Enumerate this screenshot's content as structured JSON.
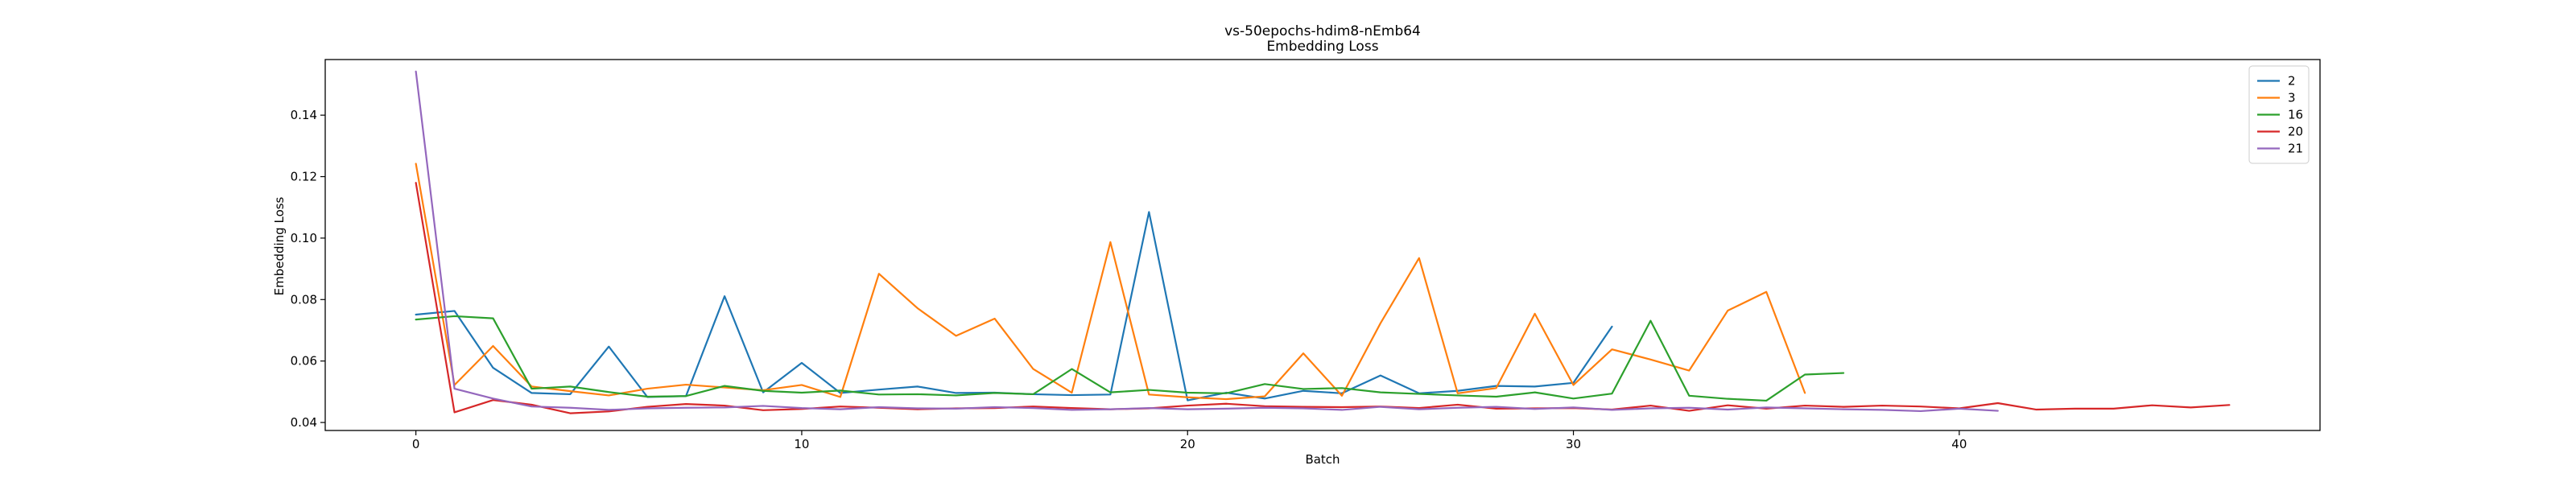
{
  "chart_data": {
    "type": "line",
    "title": "vs-50epochs-hdim8-nEmb64",
    "subtitle": "Embedding Loss",
    "xlabel": "Batch",
    "ylabel": "Embedding Loss",
    "xlim": [
      -2.35,
      49.35
    ],
    "ylim": [
      0.0374,
      0.1581
    ],
    "xticks": [
      0,
      10,
      20,
      30,
      40
    ],
    "yticks": [
      0.04,
      0.06,
      0.08,
      0.1,
      0.12,
      0.14
    ],
    "ytick_labels": [
      "0.04",
      "0.06",
      "0.08",
      "0.10",
      "0.12",
      "0.14"
    ],
    "grid": false,
    "legend_position": "top-right",
    "series": [
      {
        "name": "2",
        "color": "#1f77b4",
        "values": [
          0.0751,
          0.0763,
          0.0578,
          0.0496,
          0.0492,
          0.0647,
          0.0483,
          0.0486,
          0.0811,
          0.0498,
          0.0594,
          0.0496,
          0.0507,
          0.0517,
          0.0496,
          0.0497,
          0.0492,
          0.0489,
          0.0491,
          0.1085,
          0.0472,
          0.0497,
          0.0478,
          0.0503,
          0.0495,
          0.0553,
          0.0495,
          0.0503,
          0.0519,
          0.0517,
          0.0529,
          0.0712
        ]
      },
      {
        "name": "3",
        "color": "#ff7f0e",
        "values": [
          0.1242,
          0.0522,
          0.0649,
          0.0517,
          0.0502,
          0.0488,
          0.051,
          0.0523,
          0.0514,
          0.0505,
          0.0522,
          0.0483,
          0.0884,
          0.0772,
          0.0682,
          0.0738,
          0.0574,
          0.0497,
          0.0987,
          0.0491,
          0.0482,
          0.0476,
          0.0485,
          0.0625,
          0.0487,
          0.0723,
          0.0935,
          0.0495,
          0.0512,
          0.0754,
          0.0522,
          0.0638,
          0.0605,
          0.0569,
          0.0764,
          0.0825,
          0.0496
        ]
      },
      {
        "name": "16",
        "color": "#2ca02c",
        "values": [
          0.0735,
          0.0746,
          0.0739,
          0.051,
          0.0517,
          0.0499,
          0.0484,
          0.0486,
          0.0519,
          0.0503,
          0.0497,
          0.0504,
          0.0491,
          0.0492,
          0.0488,
          0.0496,
          0.0492,
          0.0574,
          0.0498,
          0.0506,
          0.0497,
          0.0495,
          0.0525,
          0.0509,
          0.0512,
          0.0498,
          0.0493,
          0.0488,
          0.0484,
          0.0498,
          0.0478,
          0.0494,
          0.0731,
          0.0487,
          0.0477,
          0.0471,
          0.0556,
          0.0561
        ]
      },
      {
        "name": "20",
        "color": "#d62728",
        "values": [
          0.118,
          0.0433,
          0.0473,
          0.0458,
          0.043,
          0.0436,
          0.0451,
          0.046,
          0.0455,
          0.044,
          0.0444,
          0.0452,
          0.0448,
          0.0443,
          0.0446,
          0.0447,
          0.0452,
          0.0447,
          0.0443,
          0.0446,
          0.0455,
          0.0461,
          0.0453,
          0.0451,
          0.045,
          0.0452,
          0.0447,
          0.0458,
          0.0445,
          0.0446,
          0.0447,
          0.0442,
          0.0455,
          0.0438,
          0.0456,
          0.0445,
          0.0455,
          0.0451,
          0.0455,
          0.0452,
          0.0446,
          0.0463,
          0.0442,
          0.0445,
          0.0445,
          0.0456,
          0.0449,
          0.0457
        ]
      },
      {
        "name": "21",
        "color": "#9467bd",
        "values": [
          0.1542,
          0.051,
          0.0478,
          0.0452,
          0.0448,
          0.0441,
          0.0446,
          0.0448,
          0.0449,
          0.0454,
          0.0447,
          0.0443,
          0.045,
          0.0446,
          0.0445,
          0.045,
          0.0447,
          0.0441,
          0.0443,
          0.0447,
          0.0443,
          0.0445,
          0.0448,
          0.0446,
          0.0441,
          0.0451,
          0.0443,
          0.0448,
          0.0451,
          0.0444,
          0.0449,
          0.0441,
          0.0446,
          0.0448,
          0.0442,
          0.0449,
          0.0446,
          0.0443,
          0.0441,
          0.0437,
          0.0445,
          0.0438
        ]
      }
    ]
  }
}
